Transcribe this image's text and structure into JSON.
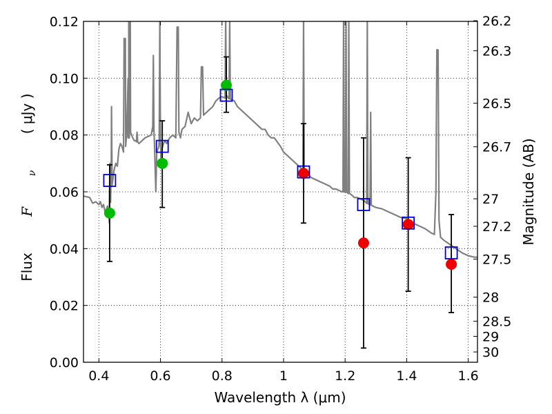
{
  "chart_data": {
    "type": "scatter",
    "xlabel": "Wavelength  λ (μm)",
    "ylabel_prefix": "Flux",
    "ylabel_symbol": "F",
    "ylabel_subscript": "ν",
    "ylabel_unit": "( μJy )",
    "ylabel_right": "Magnitude (AB)",
    "xlim": [
      0.35,
      1.63
    ],
    "ylim": [
      0.0,
      0.12
    ],
    "xticks": [
      0.4,
      0.6,
      0.8,
      1.0,
      1.2,
      1.4,
      1.6
    ],
    "xtick_labels": [
      "0.4",
      "0.6",
      "0.8",
      "1",
      "1.2",
      "1.4",
      "1.6"
    ],
    "yticks": [
      0.0,
      0.02,
      0.04,
      0.06,
      0.08,
      0.1,
      0.12
    ],
    "ytick_labels": [
      "0.00",
      "0.02",
      "0.04",
      "0.06",
      "0.08",
      "0.10",
      "0.12"
    ],
    "right_ticks": [
      {
        "mag": 26.2,
        "label": "26.2"
      },
      {
        "mag": 26.3,
        "label": "26.3"
      },
      {
        "mag": 26.5,
        "label": "26.5"
      },
      {
        "mag": 26.7,
        "label": "26.7"
      },
      {
        "mag": 27.0,
        "label": "27"
      },
      {
        "mag": 27.2,
        "label": "27.2"
      },
      {
        "mag": 27.5,
        "label": "27.5"
      },
      {
        "mag": 28.0,
        "label": "28"
      },
      {
        "mag": 28.5,
        "label": "28.5"
      },
      {
        "mag": 29.0,
        "label": "29"
      },
      {
        "mag": 30.0,
        "label": "30"
      }
    ],
    "grid": "dotted",
    "colors": {
      "green": "#00bb00",
      "red": "#ee0000",
      "model_box": "#0000cc",
      "spectrum": "#808080",
      "errorbar": "#000000"
    },
    "photometry": [
      {
        "x": 0.435,
        "y": 0.0525,
        "err": [
          0.0355,
          0.0695
        ],
        "color": "green"
      },
      {
        "x": 0.606,
        "y": 0.07,
        "err": [
          0.0545,
          0.085
        ],
        "color": "green"
      },
      {
        "x": 0.814,
        "y": 0.0975,
        "err": [
          0.088,
          0.1075
        ],
        "color": "green"
      },
      {
        "x": 1.065,
        "y": 0.0665,
        "err": [
          0.049,
          0.084
        ],
        "color": "red"
      },
      {
        "x": 1.26,
        "y": 0.042,
        "err": [
          0.005,
          0.079
        ],
        "color": "red"
      },
      {
        "x": 1.405,
        "y": 0.0485,
        "err": [
          0.025,
          0.072
        ],
        "color": "red"
      },
      {
        "x": 1.545,
        "y": 0.0345,
        "err": [
          0.0175,
          0.052
        ],
        "color": "red"
      }
    ],
    "model_photometry": [
      {
        "x": 0.435,
        "y": 0.064
      },
      {
        "x": 0.606,
        "y": 0.076
      },
      {
        "x": 0.814,
        "y": 0.094
      },
      {
        "x": 1.065,
        "y": 0.067
      },
      {
        "x": 1.26,
        "y": 0.0555
      },
      {
        "x": 1.405,
        "y": 0.049
      },
      {
        "x": 1.545,
        "y": 0.0385
      }
    ],
    "spectrum": [
      [
        0.35,
        0.0585
      ],
      [
        0.37,
        0.058
      ],
      [
        0.38,
        0.056
      ],
      [
        0.39,
        0.0565
      ],
      [
        0.4,
        0.0555
      ],
      [
        0.405,
        0.0565
      ],
      [
        0.41,
        0.0545
      ],
      [
        0.415,
        0.0555
      ],
      [
        0.42,
        0.053
      ],
      [
        0.425,
        0.054
      ],
      [
        0.428,
        0.055
      ],
      [
        0.43,
        0.051
      ],
      [
        0.432,
        0.052
      ],
      [
        0.434,
        0.049
      ],
      [
        0.437,
        0.06
      ],
      [
        0.44,
        0.062
      ],
      [
        0.445,
        0.064
      ],
      [
        0.45,
        0.068
      ],
      [
        0.455,
        0.07
      ],
      [
        0.46,
        0.069
      ],
      [
        0.465,
        0.075
      ],
      [
        0.47,
        0.077
      ],
      [
        0.475,
        0.076
      ],
      [
        0.48,
        0.074
      ],
      [
        0.484,
        0.114
      ],
      [
        0.487,
        0.076
      ],
      [
        0.49,
        0.08
      ],
      [
        0.495,
        0.1
      ],
      [
        0.497,
        0.079
      ],
      [
        0.5,
        0.121
      ],
      [
        0.503,
        0.081
      ],
      [
        0.51,
        0.079
      ],
      [
        0.515,
        0.078
      ],
      [
        0.52,
        0.078
      ],
      [
        0.53,
        0.077
      ],
      [
        0.54,
        0.078
      ],
      [
        0.55,
        0.079
      ],
      [
        0.56,
        0.0795
      ],
      [
        0.57,
        0.08
      ],
      [
        0.575,
        0.083
      ],
      [
        0.58,
        0.079
      ],
      [
        0.585,
        0.06
      ],
      [
        0.588,
        0.074
      ],
      [
        0.595,
        0.076
      ],
      [
        0.6,
        0.08
      ],
      [
        0.602,
        0.07
      ],
      [
        0.605,
        0.075
      ],
      [
        0.61,
        0.077
      ],
      [
        0.615,
        0.078
      ],
      [
        0.62,
        0.077
      ],
      [
        0.63,
        0.079
      ],
      [
        0.64,
        0.08
      ],
      [
        0.65,
        0.079
      ],
      [
        0.656,
        0.118
      ],
      [
        0.66,
        0.081
      ],
      [
        0.665,
        0.079
      ],
      [
        0.67,
        0.082
      ],
      [
        0.68,
        0.083
      ],
      [
        0.69,
        0.088
      ],
      [
        0.7,
        0.084
      ],
      [
        0.71,
        0.086
      ],
      [
        0.72,
        0.085
      ],
      [
        0.73,
        0.086
      ],
      [
        0.735,
        0.104
      ],
      [
        0.74,
        0.087
      ],
      [
        0.75,
        0.088
      ],
      [
        0.76,
        0.089
      ],
      [
        0.77,
        0.09
      ],
      [
        0.78,
        0.092
      ],
      [
        0.79,
        0.093
      ],
      [
        0.8,
        0.0935
      ],
      [
        0.81,
        0.093
      ],
      [
        0.815,
        0.094
      ],
      [
        0.82,
        0.093
      ],
      [
        0.83,
        0.0925
      ],
      [
        0.84,
        0.092
      ],
      [
        0.85,
        0.09
      ],
      [
        0.86,
        0.089
      ],
      [
        0.87,
        0.088
      ],
      [
        0.88,
        0.087
      ],
      [
        0.89,
        0.086
      ],
      [
        0.9,
        0.085
      ],
      [
        0.91,
        0.084
      ],
      [
        0.92,
        0.083
      ],
      [
        0.93,
        0.082
      ],
      [
        0.94,
        0.082
      ],
      [
        0.95,
        0.08
      ],
      [
        0.96,
        0.079
      ],
      [
        0.97,
        0.079
      ],
      [
        0.98,
        0.0775
      ],
      [
        0.99,
        0.076
      ],
      [
        1.0,
        0.074
      ],
      [
        1.01,
        0.073
      ],
      [
        1.02,
        0.072
      ],
      [
        1.03,
        0.071
      ],
      [
        1.04,
        0.07
      ],
      [
        1.05,
        0.069
      ],
      [
        1.06,
        0.068
      ],
      [
        1.07,
        0.067
      ],
      [
        1.08,
        0.066
      ],
      [
        1.09,
        0.065
      ],
      [
        1.1,
        0.0645
      ],
      [
        1.11,
        0.064
      ],
      [
        1.12,
        0.0635
      ],
      [
        1.13,
        0.063
      ],
      [
        1.14,
        0.0625
      ],
      [
        1.15,
        0.062
      ],
      [
        1.16,
        0.061
      ],
      [
        1.17,
        0.061
      ],
      [
        1.18,
        0.0605
      ],
      [
        1.19,
        0.06
      ],
      [
        1.2,
        0.06
      ],
      [
        1.21,
        0.0595
      ],
      [
        1.22,
        0.059
      ],
      [
        1.23,
        0.058
      ],
      [
        1.24,
        0.058
      ],
      [
        1.25,
        0.0575
      ],
      [
        1.26,
        0.057
      ],
      [
        1.27,
        0.056
      ],
      [
        1.28,
        0.0555
      ],
      [
        1.29,
        0.055
      ],
      [
        1.3,
        0.0545
      ],
      [
        1.32,
        0.054
      ],
      [
        1.34,
        0.053
      ],
      [
        1.36,
        0.052
      ],
      [
        1.38,
        0.051
      ],
      [
        1.4,
        0.0505
      ],
      [
        1.42,
        0.049
      ],
      [
        1.44,
        0.048
      ],
      [
        1.46,
        0.047
      ],
      [
        1.48,
        0.0455
      ],
      [
        1.49,
        0.045
      ],
      [
        1.495,
        0.06
      ],
      [
        1.5,
        0.11
      ],
      [
        1.505,
        0.05
      ],
      [
        1.51,
        0.044
      ],
      [
        1.52,
        0.043
      ],
      [
        1.54,
        0.0415
      ],
      [
        1.56,
        0.04
      ],
      [
        1.58,
        0.0385
      ],
      [
        1.6,
        0.0375
      ],
      [
        1.62,
        0.037
      ],
      [
        1.63,
        0.037
      ]
    ],
    "emission_lines": [
      {
        "x": 0.436,
        "peak": 0.07
      },
      {
        "x": 0.441,
        "peak": 0.09
      },
      {
        "x": 0.484,
        "peak": 0.114
      },
      {
        "x": 0.497,
        "peak": 0.121
      },
      {
        "x": 0.5,
        "peak": 0.121
      },
      {
        "x": 0.524,
        "peak": 0.081
      },
      {
        "x": 0.577,
        "peak": 0.108
      },
      {
        "x": 0.598,
        "peak": 0.121
      },
      {
        "x": 0.656,
        "peak": 0.118
      },
      {
        "x": 0.735,
        "peak": 0.104
      },
      {
        "x": 0.812,
        "peak": 0.121
      },
      {
        "x": 0.825,
        "peak": 0.121
      },
      {
        "x": 1.065,
        "peak": 0.121
      },
      {
        "x": 1.195,
        "peak": 0.121
      },
      {
        "x": 1.203,
        "peak": 0.121
      },
      {
        "x": 1.212,
        "peak": 0.121
      },
      {
        "x": 1.272,
        "peak": 0.121
      },
      {
        "x": 1.283,
        "peak": 0.088
      },
      {
        "x": 1.5,
        "peak": 0.11
      }
    ]
  }
}
